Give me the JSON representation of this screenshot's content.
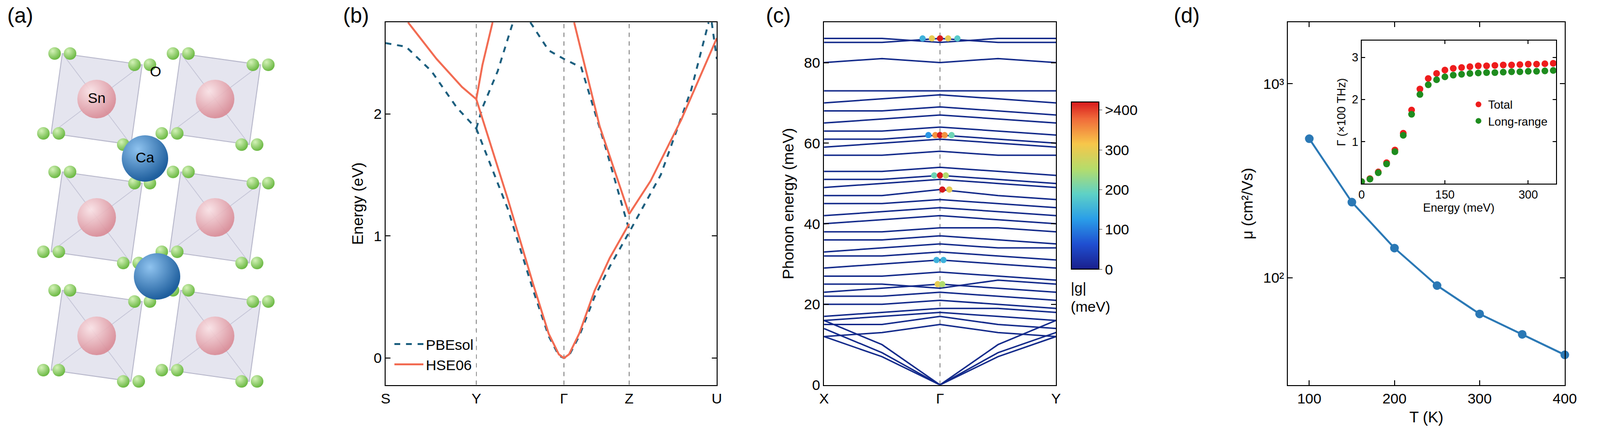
{
  "structure": {
    "panel_label": "(a)",
    "labels": [
      "Sn",
      "O",
      "Ca"
    ]
  },
  "chart_data": [
    {
      "type": "line",
      "panel_label": "(b)",
      "ylabel": "Energy (eV)",
      "xlim": [
        0,
        3.25
      ],
      "xticks": [
        {
          "value": 0,
          "label": "S"
        },
        {
          "value": 0.89,
          "label": "Y"
        },
        {
          "value": 1.75,
          "label": "Γ"
        },
        {
          "value": 2.39,
          "label": "Z"
        },
        {
          "value": 3.25,
          "label": "U"
        }
      ],
      "ylim": [
        -0.22,
        2.75
      ],
      "yticks": [
        0,
        1,
        2
      ],
      "legend": "lower left",
      "series": [
        {
          "name": "PBEsol",
          "color": "#1b5e7e",
          "line_style": "dash",
          "x": [
            0,
            0.2,
            0.45,
            0.7,
            0.89,
            null,
            0.89,
            0.95,
            1.1,
            1.25,
            null,
            0.89,
            1.2,
            1.45,
            1.6,
            1.7,
            1.75,
            1.8,
            1.9,
            2.05,
            2.2,
            2.39,
            2.7,
            3.0,
            3.17,
            null,
            1.42,
            1.6,
            1.75,
            1.92,
            2.15,
            2.39,
            null,
            3.2,
            3.25
          ],
          "values": [
            2.58,
            2.55,
            2.35,
            2.05,
            1.88,
            null,
            1.88,
            2.05,
            2.35,
            2.75,
            null,
            1.88,
            1.22,
            0.55,
            0.18,
            0.02,
            0,
            0.02,
            0.18,
            0.5,
            0.75,
            1.03,
            1.5,
            2.2,
            2.75,
            null,
            2.75,
            2.52,
            2.45,
            2.38,
            1.75,
            1.05,
            null,
            2.75,
            2.45
          ]
        },
        {
          "name": "HSE06",
          "color": "#f26b52",
          "line_style": "solid",
          "x": [
            0.22,
            0.5,
            0.75,
            0.89,
            null,
            0.89,
            0.95,
            1.05,
            null,
            0.89,
            1.2,
            1.45,
            1.6,
            1.7,
            1.75,
            1.8,
            1.9,
            2.05,
            2.2,
            2.39,
            null,
            1.85,
            2.1,
            2.39,
            2.6,
            2.9,
            3.25
          ],
          "values": [
            2.75,
            2.45,
            2.22,
            2.12,
            null,
            2.12,
            2.4,
            2.75,
            null,
            2.12,
            1.3,
            0.6,
            0.2,
            0.03,
            0,
            0.03,
            0.2,
            0.55,
            0.82,
            1.1,
            null,
            2.75,
            1.9,
            1.18,
            1.45,
            1.95,
            2.62
          ]
        }
      ]
    },
    {
      "type": "line",
      "panel_label": "(c)",
      "ylabel": "Phonon energy (meV)",
      "x": [
        0,
        0.5,
        1,
        1.5,
        2
      ],
      "xlim": [
        0,
        2
      ],
      "xticks": [
        {
          "value": 0,
          "label": "X"
        },
        {
          "value": 1,
          "label": "Γ"
        },
        {
          "value": 2,
          "label": "Y"
        }
      ],
      "ylim": [
        0,
        90
      ],
      "yticks": [
        0,
        20,
        40,
        60,
        80
      ],
      "color": "#12298a",
      "bands": [
        [
          12,
          7,
          0,
          7,
          12
        ],
        [
          14,
          8,
          0,
          8,
          13
        ],
        [
          16,
          10,
          0,
          10,
          16
        ],
        [
          12,
          13,
          15,
          13,
          12
        ],
        [
          15,
          15,
          17,
          15,
          14
        ],
        [
          16,
          17,
          18,
          17,
          16
        ],
        [
          17,
          18,
          19,
          19,
          18
        ],
        [
          20,
          20,
          21,
          20,
          19
        ],
        [
          22,
          22,
          23,
          22,
          21
        ],
        [
          23,
          24,
          25,
          24,
          23
        ],
        [
          25,
          25,
          24,
          26,
          25
        ],
        [
          27,
          27,
          28,
          27,
          26
        ],
        [
          29,
          30,
          31,
          30,
          29
        ],
        [
          32,
          32,
          33,
          32,
          31
        ],
        [
          33,
          34,
          35,
          34,
          34
        ],
        [
          36,
          36,
          37,
          36,
          35
        ],
        [
          38,
          38,
          39,
          39,
          38
        ],
        [
          40,
          41,
          42,
          41,
          40
        ],
        [
          42,
          43,
          44,
          43,
          42
        ],
        [
          45,
          45,
          46,
          45,
          44
        ],
        [
          47,
          47,
          48.5,
          47,
          46
        ],
        [
          49,
          50,
          51,
          50,
          49
        ],
        [
          51,
          51,
          52,
          51,
          50
        ],
        [
          53,
          53,
          54,
          53,
          52
        ],
        [
          57,
          57,
          58,
          57,
          57
        ],
        [
          59,
          60,
          61,
          60,
          59
        ],
        [
          61,
          61,
          62,
          61,
          60
        ],
        [
          63,
          63,
          64,
          63,
          62
        ],
        [
          65,
          66,
          67,
          66,
          65
        ],
        [
          68,
          68,
          69,
          68,
          67
        ],
        [
          70,
          71,
          72,
          71,
          70
        ],
        [
          73,
          73,
          73,
          73,
          73
        ],
        [
          80,
          81,
          80,
          81,
          80
        ],
        [
          85,
          85,
          86,
          85,
          85
        ],
        [
          86,
          86,
          85,
          86,
          86
        ]
      ],
      "coupling": {
        "x": [
          0.85,
          0.93,
          1,
          1.07,
          1.15,
          0.9,
          0.96,
          1,
          1.04,
          1.1,
          0.95,
          1,
          1.05,
          1.02,
          1.08,
          0.97,
          1.03,
          0.98,
          1.02
        ],
        "y": [
          86,
          86,
          86,
          86,
          86,
          62,
          62,
          62,
          62,
          62,
          52,
          52,
          52,
          48.5,
          48.5,
          31,
          31,
          25,
          25
        ],
        "g": [
          150,
          300,
          420,
          300,
          180,
          120,
          350,
          420,
          350,
          200,
          200,
          420,
          250,
          420,
          300,
          150,
          150,
          300,
          250
        ]
      },
      "colorbar": {
        "title": "|g| (meV)",
        "range": [
          0,
          420
        ],
        "ticks": [
          0,
          100,
          200,
          300,
          {
            "value": 400,
            "label": ">400"
          }
        ]
      }
    },
    {
      "type": "line",
      "panel_label": "(d)",
      "xlabel": "T (K)",
      "ylabel": "μ (cm²/Vs)",
      "log": "y",
      "xlim": [
        75,
        400
      ],
      "xticks": [
        100,
        200,
        300,
        400
      ],
      "ylim": [
        28,
        2070
      ],
      "yticks": [
        {
          "value": 100,
          "label": "10²"
        },
        {
          "value": 1000,
          "label": "10³"
        }
      ],
      "color": "#2a78b5",
      "marker": "circle",
      "x": [
        100,
        150,
        200,
        250,
        300,
        350,
        400
      ],
      "values": [
        520,
        245,
        142,
        91,
        65,
        51,
        40
      ]
    },
    {
      "type": "scatter",
      "xlabel": "Energy (meV)",
      "ylabel": "Γ (×100 THz)",
      "xlim": [
        0,
        350
      ],
      "xticks": [
        0,
        150,
        300
      ],
      "ylim": [
        0,
        3.4
      ],
      "yticks": [
        1,
        2,
        3
      ],
      "legend": "upper right",
      "marker": "circle",
      "x": [
        0,
        15,
        30,
        45,
        60,
        75,
        90,
        105,
        120,
        135,
        150,
        165,
        180,
        195,
        210,
        225,
        240,
        255,
        270,
        285,
        300,
        315,
        330,
        345
      ],
      "series": [
        {
          "name": "Total",
          "color": "#ee1c1c",
          "values": [
            0.05,
            0.12,
            0.28,
            0.5,
            0.8,
            1.2,
            1.75,
            2.25,
            2.5,
            2.62,
            2.7,
            2.74,
            2.76,
            2.78,
            2.8,
            2.8,
            2.81,
            2.82,
            2.82,
            2.83,
            2.84,
            2.84,
            2.85,
            2.86
          ]
        },
        {
          "name": "Long-range",
          "color": "#1e8c1e",
          "values": [
            0.05,
            0.11,
            0.26,
            0.47,
            0.76,
            1.15,
            1.65,
            2.12,
            2.35,
            2.47,
            2.54,
            2.58,
            2.6,
            2.62,
            2.63,
            2.64,
            2.64,
            2.65,
            2.66,
            2.66,
            2.67,
            2.67,
            2.68,
            2.69
          ]
        }
      ]
    }
  ]
}
